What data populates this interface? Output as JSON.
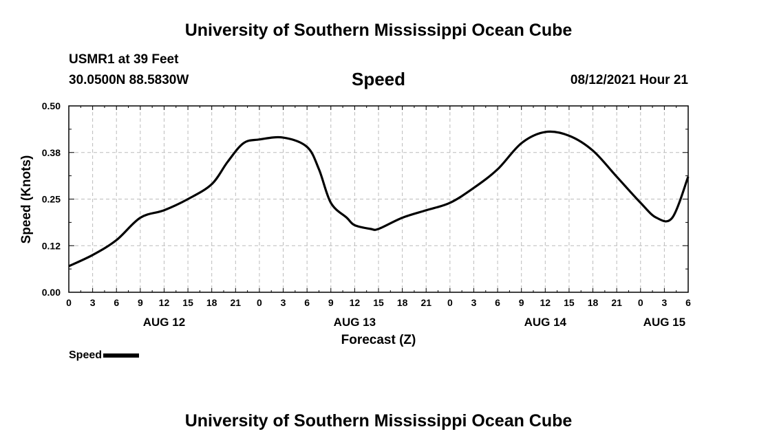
{
  "header": {
    "title": "University of Southern Mississippi Ocean Cube",
    "station": "USMR1 at 39 Feet",
    "coords": "30.0500N  88.5830W",
    "variable": "Speed",
    "issued": "08/12/2021 Hour 21"
  },
  "footer": {
    "title": "University of Southern Mississippi Ocean Cube"
  },
  "legend": {
    "label": "Speed"
  },
  "chart_data": {
    "type": "line",
    "title": "Speed",
    "xlabel": "Forecast (Z)",
    "ylabel": "Speed (Knots)",
    "xlim": [
      0,
      78
    ],
    "ylim": [
      0,
      0.5
    ],
    "yticks": [
      "0.00",
      "0.12",
      "0.25",
      "0.38",
      "0.50"
    ],
    "ytick_values": [
      0,
      0.125,
      0.25,
      0.375,
      0.5
    ],
    "xtick_labels": [
      "0",
      "3",
      "6",
      "9",
      "12",
      "15",
      "18",
      "21",
      "0",
      "3",
      "6",
      "9",
      "12",
      "15",
      "18",
      "21",
      "0",
      "3",
      "6",
      "9",
      "12",
      "15",
      "18",
      "21",
      "0",
      "3",
      "6"
    ],
    "day_labels": [
      {
        "label": "AUG 12",
        "x": 12
      },
      {
        "label": "AUG 13",
        "x": 36
      },
      {
        "label": "AUG 14",
        "x": 60
      },
      {
        "label": "AUG 15",
        "x": 75
      }
    ],
    "grid": true,
    "series": [
      {
        "name": "Speed",
        "x": [
          0,
          3,
          6,
          9,
          12,
          15,
          18,
          20,
          22,
          24,
          27,
          30,
          31.5,
          33,
          35,
          36,
          38,
          39,
          42,
          45,
          48,
          51,
          54,
          57,
          60,
          63,
          66,
          69,
          72,
          74,
          76,
          78
        ],
        "y": [
          0.07,
          0.1,
          0.14,
          0.2,
          0.22,
          0.25,
          0.29,
          0.35,
          0.4,
          0.41,
          0.415,
          0.39,
          0.33,
          0.24,
          0.2,
          0.18,
          0.17,
          0.17,
          0.2,
          0.22,
          0.24,
          0.28,
          0.33,
          0.4,
          0.43,
          0.42,
          0.38,
          0.31,
          0.24,
          0.2,
          0.2,
          0.31
        ]
      }
    ]
  }
}
